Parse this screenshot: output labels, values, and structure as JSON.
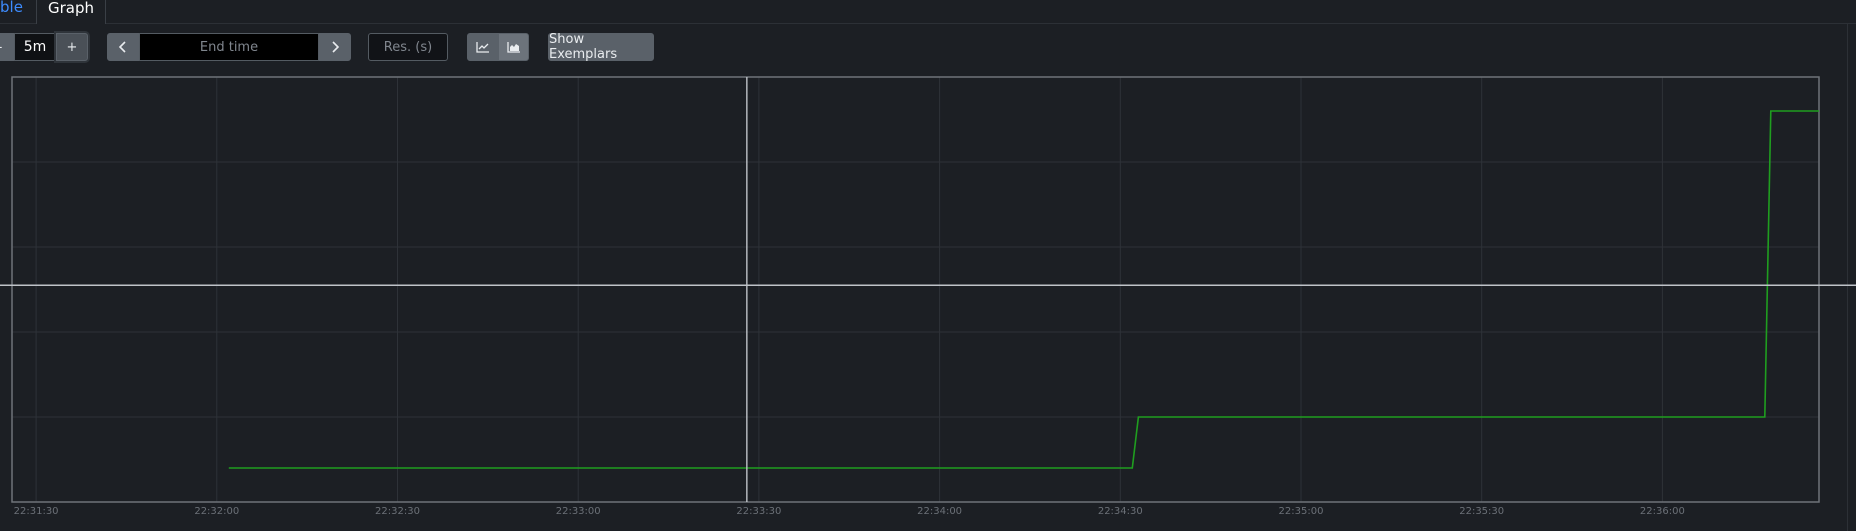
{
  "tabs": {
    "table_label": "ble",
    "graph_label": "Graph"
  },
  "toolbar": {
    "range_minus": "-",
    "range_value": "5m",
    "range_plus": "+",
    "end_prev_icon": "chevron-left-icon",
    "end_time_placeholder": "End time",
    "end_next_icon": "chevron-right-icon",
    "resolution_placeholder": "Res. (s)",
    "stack_line_icon": "line-chart-icon",
    "stack_area_icon": "area-chart-icon",
    "exemplars_label": "Show Exemplars"
  },
  "colors": {
    "background": "#1c1f24",
    "series": "#1f9e1f",
    "crosshair": "#bfc3c8",
    "plot_border": "#6e7379",
    "grid": "#2e3238"
  },
  "chart_data": {
    "type": "line",
    "x_tick_labels": [
      "22:31:30",
      "22:32:00",
      "22:32:30",
      "22:33:00",
      "22:33:30",
      "22:34:00",
      "22:34:30",
      "22:35:00",
      "22:35:30",
      "22:36:00"
    ],
    "x_range": [
      "22:31:26",
      "22:36:26"
    ],
    "y_range": [
      0,
      5
    ],
    "y_tick_labels": [
      "",
      "",
      "",
      "",
      "",
      ""
    ],
    "grid": true,
    "series": [
      {
        "points": [
          [
            "22:32:02",
            0.4
          ],
          [
            "22:34:32",
            0.4
          ],
          [
            "22:34:33",
            1.0
          ],
          [
            "22:36:17",
            1.0
          ],
          [
            "22:36:18",
            4.6
          ],
          [
            "22:36:26",
            4.6
          ]
        ]
      }
    ],
    "crosshair": {
      "x": "22:33:28",
      "y": 2.55
    }
  }
}
